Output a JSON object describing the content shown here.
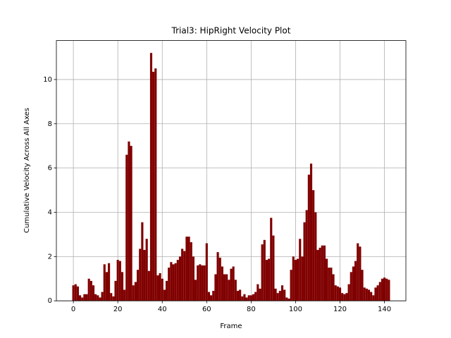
{
  "chart_data": {
    "type": "bar",
    "title": "Trial3: HipRight Velocity Plot",
    "x_label": "Frame",
    "y_label": "Cumulative Velocity Across All Axes",
    "x": [
      0,
      1,
      2,
      3,
      4,
      5,
      6,
      7,
      8,
      9,
      10,
      11,
      12,
      13,
      14,
      15,
      16,
      17,
      18,
      19,
      20,
      21,
      22,
      23,
      24,
      25,
      26,
      27,
      28,
      29,
      30,
      31,
      32,
      33,
      34,
      35,
      36,
      37,
      38,
      39,
      40,
      41,
      42,
      43,
      44,
      45,
      46,
      47,
      48,
      49,
      50,
      51,
      52,
      53,
      54,
      55,
      56,
      57,
      58,
      59,
      60,
      61,
      62,
      63,
      64,
      65,
      66,
      67,
      68,
      69,
      70,
      71,
      72,
      73,
      74,
      75,
      76,
      77,
      78,
      79,
      80,
      81,
      82,
      83,
      84,
      85,
      86,
      87,
      88,
      89,
      90,
      91,
      92,
      93,
      94,
      95,
      96,
      97,
      98,
      99,
      100,
      101,
      102,
      103,
      104,
      105,
      106,
      107,
      108,
      109,
      110,
      111,
      112,
      113,
      114,
      115,
      116,
      117,
      118,
      119,
      120,
      121,
      122,
      123,
      124,
      125,
      126,
      127,
      128,
      129,
      130,
      131,
      132,
      133,
      134,
      135,
      136,
      137,
      138,
      139,
      140,
      141,
      142
    ],
    "values": [
      0.7,
      0.75,
      0.65,
      0.25,
      0.15,
      0.3,
      0.3,
      1.0,
      0.9,
      0.7,
      0.3,
      0.25,
      0.15,
      0.4,
      1.65,
      1.3,
      1.7,
      0.35,
      0.2,
      0.9,
      1.85,
      1.8,
      1.3,
      0.5,
      6.6,
      7.2,
      7.0,
      0.7,
      0.85,
      1.4,
      2.35,
      3.55,
      2.3,
      2.8,
      1.35,
      11.2,
      10.35,
      10.5,
      1.15,
      1.25,
      1.0,
      0.5,
      0.9,
      1.5,
      1.75,
      1.65,
      1.7,
      1.85,
      2.0,
      2.35,
      2.25,
      2.9,
      2.9,
      2.65,
      2.0,
      0.95,
      1.6,
      1.65,
      1.6,
      1.6,
      2.6,
      0.4,
      0.25,
      0.45,
      1.2,
      2.2,
      1.95,
      1.55,
      1.2,
      1.2,
      0.95,
      1.45,
      1.55,
      0.95,
      0.45,
      0.5,
      0.2,
      0.3,
      0.15,
      0.25,
      0.25,
      0.3,
      0.4,
      0.75,
      0.55,
      2.55,
      2.75,
      1.85,
      1.9,
      3.75,
      2.95,
      0.55,
      0.35,
      0.45,
      0.7,
      0.5,
      0.15,
      0.1,
      1.4,
      2.0,
      1.85,
      1.9,
      2.8,
      2.0,
      3.55,
      4.1,
      5.7,
      6.2,
      5.0,
      4.0,
      2.3,
      2.4,
      2.5,
      2.5,
      1.9,
      1.5,
      1.5,
      1.2,
      0.7,
      0.65,
      0.6,
      0.35,
      0.3,
      0.35,
      0.75,
      1.3,
      1.55,
      1.8,
      2.6,
      2.45,
      1.4,
      0.6,
      0.55,
      0.5,
      0.4,
      0.25,
      0.6,
      0.7,
      0.85,
      1.0,
      1.05,
      1.0,
      0.95
    ],
    "color": "#800000",
    "xlim": [
      -7.65,
      149.65
    ],
    "xticks": [
      0,
      20,
      40,
      60,
      80,
      100,
      120,
      140
    ],
    "ylim": [
      0,
      11.76
    ],
    "yticks": [
      0,
      2,
      4,
      6,
      8,
      10
    ],
    "grid": true
  }
}
